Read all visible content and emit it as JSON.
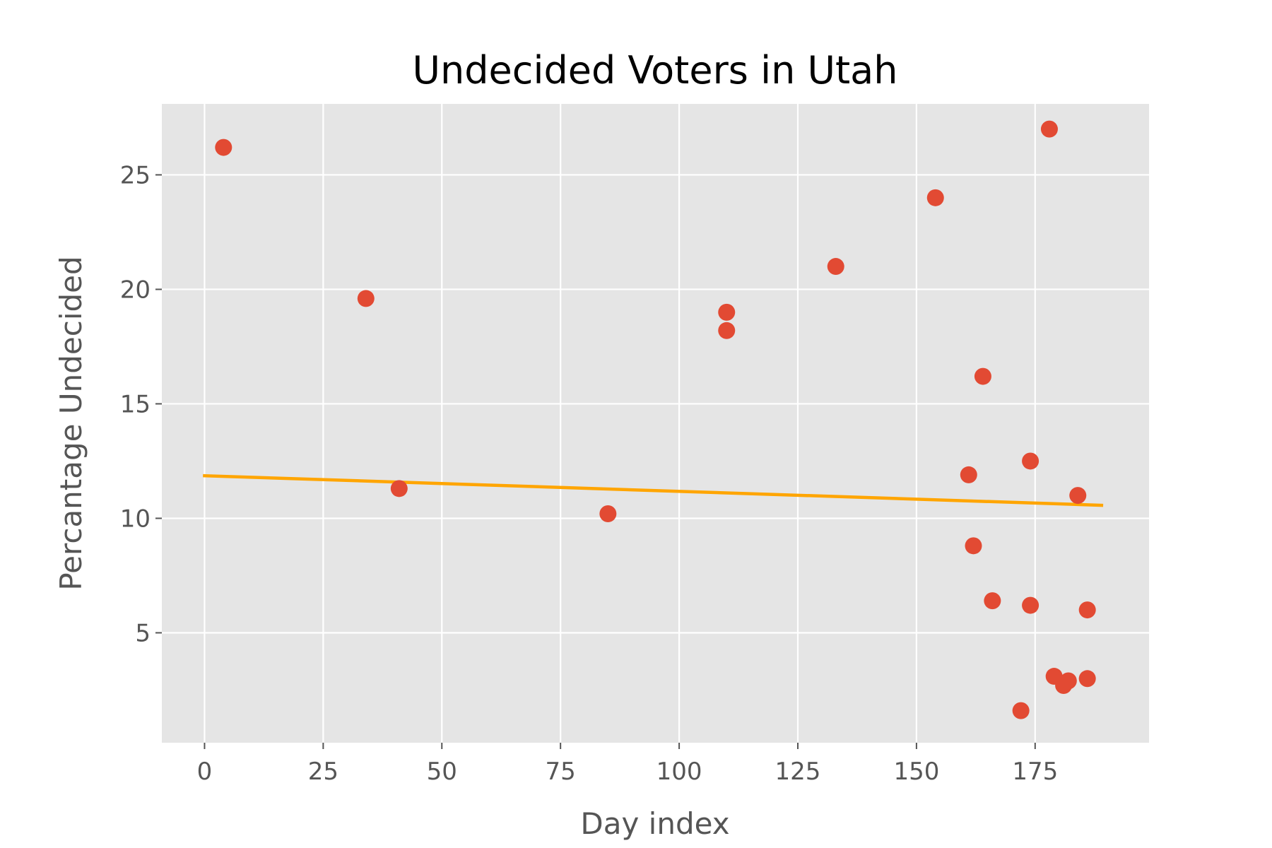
{
  "chart_data": {
    "type": "scatter",
    "title": "Undecided Voters in Utah",
    "xlabel": "Day index",
    "ylabel": "Percantage Undecided",
    "xlim": [
      -9,
      199
    ],
    "ylim": [
      0.2,
      28.1
    ],
    "xticks": [
      0,
      25,
      50,
      75,
      100,
      125,
      150,
      175
    ],
    "yticks": [
      5,
      10,
      15,
      20,
      25
    ],
    "grid": true,
    "background": "#e5e5e5",
    "grid_color": "#ffffff",
    "point_color": "#e24a33",
    "trend_color": "#ffa500",
    "points": [
      {
        "x": 4,
        "y": 26.2
      },
      {
        "x": 34,
        "y": 19.6
      },
      {
        "x": 41,
        "y": 11.3
      },
      {
        "x": 85,
        "y": 10.2
      },
      {
        "x": 110,
        "y": 19.0
      },
      {
        "x": 110,
        "y": 18.2
      },
      {
        "x": 133,
        "y": 21.0
      },
      {
        "x": 154,
        "y": 24.0
      },
      {
        "x": 161,
        "y": 11.9
      },
      {
        "x": 162,
        "y": 8.8
      },
      {
        "x": 164,
        "y": 16.2
      },
      {
        "x": 166,
        "y": 6.4
      },
      {
        "x": 172,
        "y": 1.6
      },
      {
        "x": 174,
        "y": 12.5
      },
      {
        "x": 174,
        "y": 6.2
      },
      {
        "x": 178,
        "y": 27.0
      },
      {
        "x": 179,
        "y": 3.1
      },
      {
        "x": 181,
        "y": 2.7
      },
      {
        "x": 182,
        "y": 2.9
      },
      {
        "x": 184,
        "y": 11.0
      },
      {
        "x": 186,
        "y": 6.0
      },
      {
        "x": 186,
        "y": 3.0
      }
    ],
    "trend_line": {
      "x": [
        0,
        189
      ],
      "y": [
        11.86,
        10.57
      ]
    }
  }
}
